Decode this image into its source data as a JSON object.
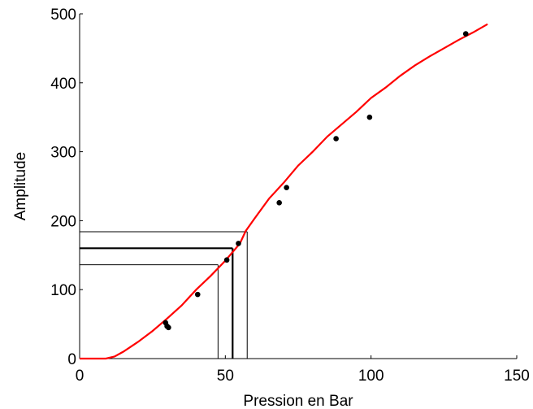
{
  "chart_data": {
    "type": "scatter",
    "xlabel": "Pression en Bar",
    "ylabel": "Amplitude",
    "xlim": [
      0,
      150
    ],
    "ylim": [
      0,
      500
    ],
    "xticks": [
      0,
      50,
      100,
      150
    ],
    "yticks": [
      0,
      100,
      200,
      300,
      400,
      500
    ],
    "grid": false,
    "colors": {
      "fit": "#ff0000",
      "points": "#000000",
      "guides": "#000000"
    },
    "series": [
      {
        "kind": "points",
        "x": [
          29.5,
          30,
          30.5,
          40.5,
          50.5,
          54.5,
          68.5,
          71,
          88,
          99.5,
          132.5
        ],
        "y": [
          52,
          47,
          45,
          93,
          143,
          167,
          226,
          248,
          319,
          350,
          471
        ]
      },
      {
        "kind": "line",
        "x": [
          0,
          5,
          9,
          12,
          15,
          20,
          25,
          30,
          35,
          40,
          45,
          50,
          55,
          57,
          60,
          65,
          70,
          75,
          80,
          85,
          90,
          95,
          100,
          105,
          110,
          115,
          120,
          125,
          130,
          135,
          140
        ],
        "y": [
          0,
          0,
          0,
          3,
          10,
          24,
          40,
          58,
          77,
          100,
          120,
          142,
          167,
          185,
          203,
          232,
          255,
          280,
          300,
          322,
          340,
          358,
          378,
          393,
          410,
          425,
          438,
          450,
          462,
          473,
          485
        ]
      }
    ],
    "guides": [
      {
        "y": 160,
        "x_end": 52.5,
        "bold": true
      },
      {
        "y": 136,
        "x_end": 47.5,
        "bold": false
      },
      {
        "y": 184,
        "x_end": 57.5,
        "bold": false
      }
    ]
  }
}
